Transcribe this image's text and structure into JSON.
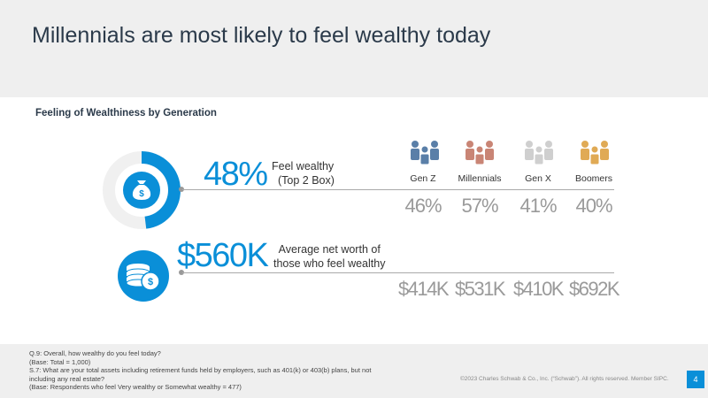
{
  "title": "Millennials are most likely to feel wealthy today",
  "section_title": "Feeling of Wealthiness by Generation",
  "stat1": {
    "value": "48%",
    "label_line1": "Feel wealthy",
    "label_line2": "(Top 2 Box)",
    "fraction": 0.48
  },
  "stat2": {
    "value": "$560K",
    "label_line1": "Average net worth of",
    "label_line2": "those who feel wealthy"
  },
  "colors": {
    "accent": "#0a8fd8",
    "gen_z": "#5a7fa8",
    "millennials": "#c98575",
    "gen_x": "#cfcfcf",
    "boomers": "#e0aa55",
    "ring_bg": "#f0f0f0"
  },
  "chart_data": {
    "type": "table",
    "title": "Feeling of Wealthiness by Generation",
    "categories": [
      "Gen Z",
      "Millennials",
      "Gen X",
      "Boomers"
    ],
    "series": [
      {
        "name": "Feel wealthy (Top 2 Box)",
        "values": [
          46,
          57,
          41,
          40
        ],
        "labels": [
          "46%",
          "57%",
          "41%",
          "40%"
        ]
      },
      {
        "name": "Average net worth of those who feel wealthy",
        "values": [
          414,
          531,
          410,
          692
        ],
        "labels": [
          "$414K",
          "$531K",
          "$410K",
          "$692K"
        ]
      }
    ],
    "overall": {
      "feel_wealthy_pct": 48,
      "avg_net_worth": "$560K"
    }
  },
  "footer": {
    "notes": [
      "Q.9:  Overall, how wealthy do you feel today?",
      "(Base: Total = 1,000)",
      "S.7: What are your total assets including retirement funds held by employers, such as 401(k) or 403(b) plans, but not including any real estate?",
      "(Base: Respondents who feel Very wealthy or Somewhat wealthy = 477)"
    ],
    "copyright": "©2023 Charles Schwab & Co., Inc. (“Schwab”). All rights reserved. Member SIPC.",
    "page": "4"
  }
}
